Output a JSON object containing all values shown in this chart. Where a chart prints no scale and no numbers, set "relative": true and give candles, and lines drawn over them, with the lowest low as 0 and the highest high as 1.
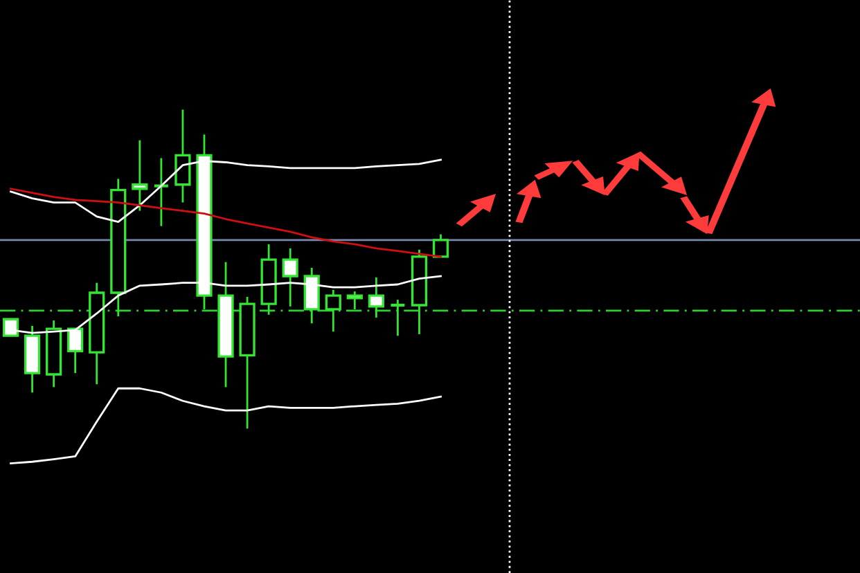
{
  "chart_data": {
    "type": "candlestick",
    "relative": true,
    "categories": [
      null,
      null,
      null,
      null,
      null,
      null,
      null,
      null,
      null,
      null,
      null,
      null,
      null,
      null,
      null,
      null,
      null,
      null,
      null,
      null,
      null,
      null,
      null,
      null,
      null,
      null,
      null,
      null,
      null,
      null,
      null,
      null,
      null,
      null,
      null,
      null,
      null,
      null,
      null,
      null
    ],
    "ohlc": [
      [
        0.343,
        0.343,
        0.291,
        0.291
      ],
      [
        0.291,
        0.322,
        0.113,
        0.174
      ],
      [
        0.17,
        0.339,
        0.13,
        0.313
      ],
      [
        0.313,
        0.313,
        0.174,
        0.243
      ],
      [
        0.239,
        0.457,
        0.139,
        0.426
      ],
      [
        0.426,
        0.783,
        0.352,
        0.748
      ],
      [
        0.765,
        0.904,
        0.683,
        0.752
      ],
      [
        0.761,
        0.848,
        0.635,
        0.761
      ],
      [
        0.765,
        1,
        0.709,
        0.857
      ],
      [
        0.857,
        0.922,
        0.374,
        0.417
      ],
      [
        0.417,
        0.522,
        0.13,
        0.226
      ],
      [
        0.23,
        0.413,
        0,
        0.391
      ],
      [
        0.391,
        0.578,
        0.357,
        0.53
      ],
      [
        0.53,
        0.565,
        0.383,
        0.478
      ],
      [
        0.478,
        0.504,
        0.33,
        0.374
      ],
      [
        0.374,
        0.435,
        0.304,
        0.417
      ],
      [
        0.417,
        0.43,
        0.374,
        0.409
      ],
      [
        0.417,
        0.474,
        0.348,
        0.383
      ],
      [
        0.387,
        0.404,
        0.291,
        0.387
      ],
      [
        0.387,
        0.561,
        0.296,
        0.539
      ],
      [
        0.539,
        0.609,
        0.539,
        0.591
      ],
      null,
      null,
      null,
      null,
      null,
      null,
      null,
      null,
      null,
      null,
      null,
      null,
      null,
      null,
      null,
      null,
      null,
      null,
      null
    ],
    "color": "#32e632",
    "colors": [
      "#ffffff",
      "#ffffff",
      "#000000",
      "#ffffff",
      "#000000",
      "#000000",
      "#ffffff",
      "#32e632",
      "#000000",
      "#ffffff",
      "#ffffff",
      "#000000",
      "#000000",
      "#ffffff",
      "#ffffff",
      "#000000",
      "#ffffff",
      "#ffffff",
      "#32e632",
      "#000000",
      "#000000",
      null,
      null,
      null,
      null,
      null,
      null,
      null,
      null,
      null,
      null,
      null,
      null,
      null,
      null,
      null,
      null,
      null,
      null,
      null
    ],
    "series": [
      {
        "type": "line",
        "color": "#ffffff",
        "values": [
          0.743,
          0.722,
          0.709,
          0.709,
          0.665,
          0.648,
          0.7,
          0.761,
          0.826,
          0.839,
          0.835,
          0.826,
          0.822,
          0.817,
          0.817,
          0.817,
          0.817,
          0.822,
          0.826,
          0.83,
          0.843,
          null,
          null,
          null,
          null,
          null,
          null,
          null,
          null,
          null,
          null,
          null,
          null,
          null,
          null,
          null,
          null,
          null,
          null,
          null
        ]
      },
      {
        "type": "line",
        "color": "#ffffff",
        "values": [
          0.309,
          0.3,
          0.304,
          0.309,
          0.361,
          0.417,
          0.448,
          0.452,
          0.457,
          0.457,
          0.448,
          0.448,
          0.452,
          0.457,
          0.452,
          0.443,
          0.443,
          0.448,
          0.452,
          0.47,
          0.478,
          null,
          null,
          null,
          null,
          null,
          null,
          null,
          null,
          null,
          null,
          null,
          null,
          null,
          null,
          null,
          null,
          null,
          null,
          null
        ]
      },
      {
        "type": "line",
        "color": "#ffffff",
        "values": [
          -0.109,
          -0.104,
          -0.096,
          -0.087,
          0.022,
          0.126,
          0.126,
          0.113,
          0.087,
          0.07,
          0.057,
          0.057,
          0.07,
          0.065,
          0.065,
          0.065,
          0.07,
          0.074,
          0.078,
          0.087,
          0.1,
          null,
          null,
          null,
          null,
          null,
          null,
          null,
          null,
          null,
          null,
          null,
          null,
          null,
          null,
          null,
          null,
          null,
          null,
          null
        ]
      },
      {
        "type": "line",
        "color": "#d01010",
        "values": [
          0.752,
          0.739,
          0.726,
          0.717,
          0.713,
          0.709,
          0.7,
          0.691,
          0.683,
          0.674,
          0.657,
          0.643,
          0.63,
          0.617,
          0.6,
          0.587,
          0.578,
          0.565,
          0.557,
          0.548,
          0.539,
          null,
          null,
          null,
          null,
          null,
          null,
          null,
          null,
          null,
          null,
          null,
          null,
          null,
          null,
          null,
          null,
          null,
          null,
          null
        ]
      }
    ],
    "ref_lines": [
      {
        "axis": "y",
        "value": 0.591,
        "color": "#7a86b0",
        "line_style": "solid"
      },
      {
        "axis": "y",
        "value": 0.37,
        "color": "#32cd32",
        "line_style": "dashdot"
      }
    ]
  }
}
